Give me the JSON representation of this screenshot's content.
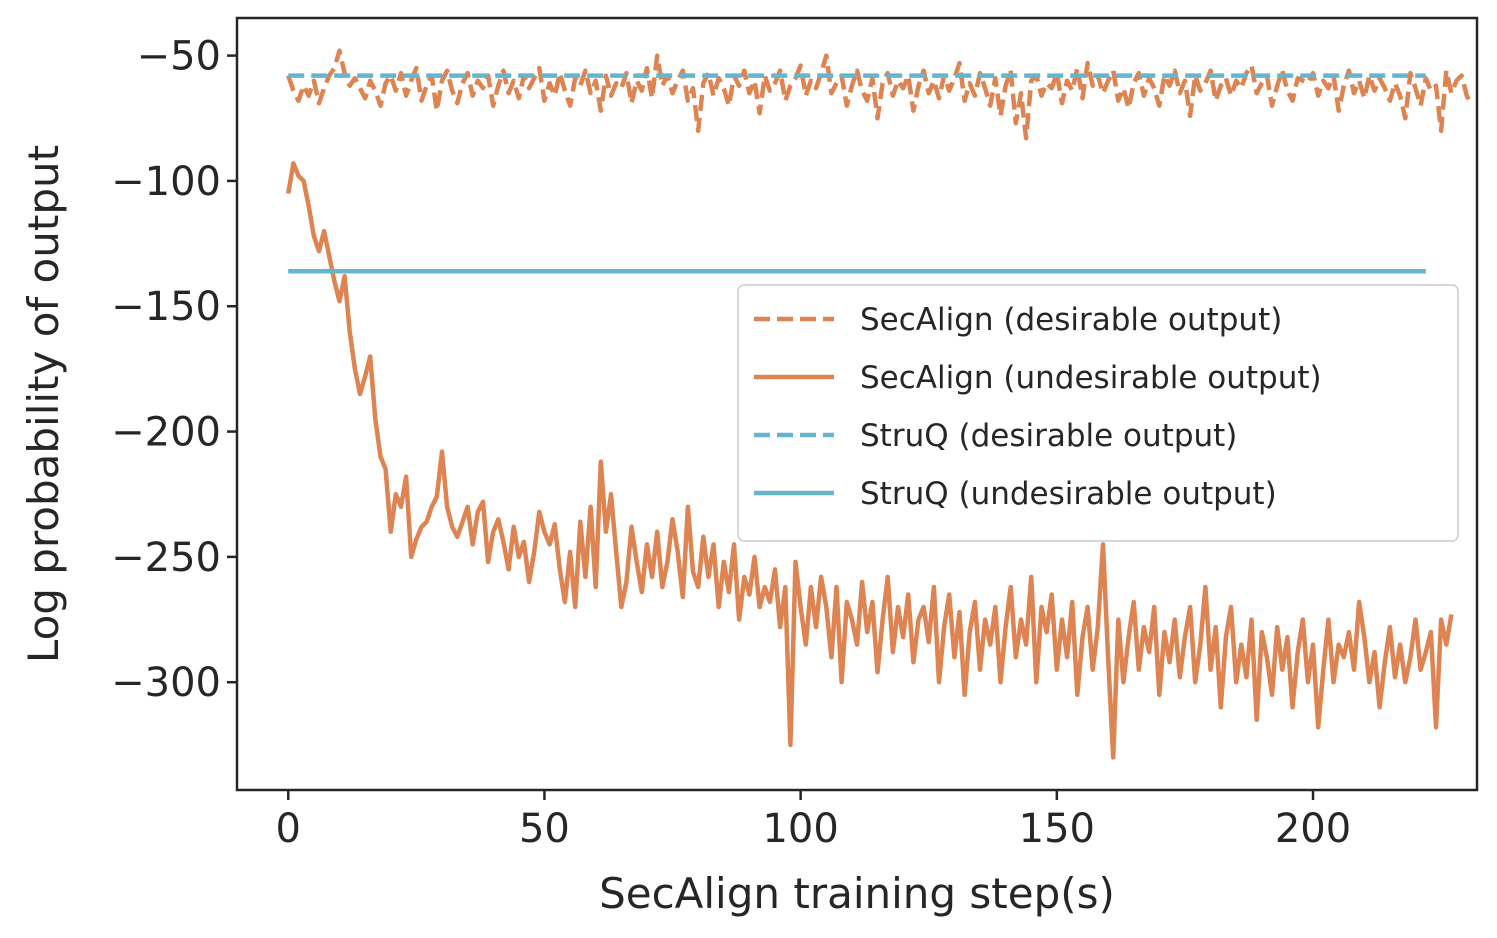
{
  "chart_data": {
    "type": "line",
    "xlabel": "SecAlign training step(s)",
    "ylabel": "Log probability of output",
    "xlim": [
      -10,
      232
    ],
    "ylim": [
      -343,
      -35
    ],
    "xticks": [
      0,
      50,
      100,
      150,
      200
    ],
    "yticks": [
      -50,
      -100,
      -150,
      -200,
      -250,
      -300
    ],
    "xtick_labels": [
      "0",
      "50",
      "100",
      "150",
      "200"
    ],
    "ytick_labels": [
      "−50",
      "−100",
      "−150",
      "−200",
      "−250",
      "−300"
    ],
    "grid": false,
    "legend_position": "center-right",
    "series": [
      {
        "name": "SecAlign (desirable output)",
        "color": "#DD8452",
        "style": "dashed",
        "step": 1,
        "x_start": 0,
        "values": [
          -58,
          -64,
          -68,
          -62,
          -66,
          -60,
          -69,
          -63,
          -58,
          -55,
          -48,
          -57,
          -62,
          -59,
          -63,
          -67,
          -60,
          -64,
          -70,
          -61,
          -58,
          -64,
          -57,
          -66,
          -60,
          -55,
          -68,
          -62,
          -58,
          -72,
          -60,
          -56,
          -64,
          -69,
          -61,
          -57,
          -66,
          -60,
          -63,
          -58,
          -70,
          -62,
          -56,
          -65,
          -60,
          -67,
          -58,
          -63,
          -59,
          -55,
          -68,
          -61,
          -66,
          -57,
          -64,
          -70,
          -59,
          -62,
          -56,
          -65,
          -60,
          -72,
          -58,
          -66,
          -61,
          -63,
          -57,
          -69,
          -60,
          -64,
          -55,
          -67,
          -50,
          -62,
          -58,
          -65,
          -60,
          -56,
          -68,
          -63,
          -80,
          -61,
          -57,
          -66,
          -59,
          -63,
          -70,
          -58,
          -62,
          -56,
          -65,
          -60,
          -73,
          -58,
          -64,
          -61,
          -56,
          -68,
          -62,
          -59,
          -54,
          -66,
          -60,
          -63,
          -57,
          -50,
          -65,
          -61,
          -58,
          -70,
          -62,
          -56,
          -64,
          -68,
          -59,
          -75,
          -61,
          -57,
          -66,
          -60,
          -63,
          -58,
          -72,
          -62,
          -56,
          -65,
          -60,
          -67,
          -58,
          -64,
          -59,
          -53,
          -68,
          -61,
          -66,
          -57,
          -63,
          -70,
          -59,
          -74,
          -62,
          -56,
          -77,
          -65,
          -83,
          -60,
          -58,
          -66,
          -61,
          -63,
          -57,
          -69,
          -60,
          -64,
          -55,
          -67,
          -53,
          -62,
          -58,
          -65,
          -60,
          -56,
          -68,
          -63,
          -71,
          -61,
          -57,
          -66,
          -59,
          -63,
          -70,
          -58,
          -62,
          -56,
          -65,
          -60,
          -74,
          -58,
          -64,
          -61,
          -56,
          -68,
          -62,
          -59,
          -66,
          -60,
          -63,
          -57,
          -54,
          -65,
          -61,
          -58,
          -70,
          -62,
          -56,
          -64,
          -68,
          -59,
          -60,
          -61,
          -57,
          -66,
          -60,
          -63,
          -58,
          -72,
          -62,
          -56,
          -65,
          -60,
          -67,
          -58,
          -64,
          -59,
          -63,
          -68,
          -61,
          -66,
          -75,
          -57,
          -63,
          -70,
          -59,
          -64,
          -62,
          -80,
          -56,
          -65,
          -60,
          -58,
          -66,
          -70
        ]
      },
      {
        "name": "SecAlign (undesirable output)",
        "color": "#DD8452",
        "style": "solid",
        "step": 1,
        "x_start": 0,
        "values": [
          -105,
          -93,
          -98,
          -100,
          -110,
          -122,
          -128,
          -120,
          -130,
          -140,
          -148,
          -138,
          -160,
          -175,
          -185,
          -178,
          -170,
          -195,
          -210,
          -215,
          -240,
          -225,
          -230,
          -218,
          -250,
          -243,
          -238,
          -236,
          -230,
          -226,
          -208,
          -230,
          -238,
          -242,
          -236,
          -230,
          -245,
          -232,
          -228,
          -252,
          -240,
          -235,
          -244,
          -255,
          -238,
          -250,
          -244,
          -260,
          -248,
          -232,
          -240,
          -245,
          -237,
          -255,
          -268,
          -248,
          -270,
          -236,
          -258,
          -230,
          -262,
          -212,
          -240,
          -225,
          -248,
          -270,
          -260,
          -238,
          -252,
          -264,
          -245,
          -258,
          -240,
          -262,
          -252,
          -235,
          -248,
          -266,
          -230,
          -256,
          -262,
          -242,
          -258,
          -245,
          -270,
          -252,
          -264,
          -245,
          -275,
          -258,
          -265,
          -250,
          -270,
          -262,
          -268,
          -255,
          -278,
          -262,
          -325,
          -252,
          -270,
          -285,
          -262,
          -278,
          -258,
          -270,
          -290,
          -262,
          -300,
          -268,
          -275,
          -285,
          -260,
          -280,
          -268,
          -296,
          -275,
          -258,
          -288,
          -270,
          -282,
          -265,
          -292,
          -275,
          -270,
          -284,
          -262,
          -300,
          -278,
          -265,
          -290,
          -272,
          -305,
          -280,
          -268,
          -295,
          -275,
          -285,
          -270,
          -300,
          -278,
          -262,
          -290,
          -275,
          -285,
          -258,
          -300,
          -270,
          -280,
          -265,
          -295,
          -275,
          -290,
          -268,
          -305,
          -282,
          -270,
          -295,
          -278,
          -245,
          -290,
          -330,
          -275,
          -300,
          -282,
          -268,
          -295,
          -278,
          -288,
          -270,
          -305,
          -280,
          -292,
          -275,
          -298,
          -282,
          -270,
          -300,
          -285,
          -262,
          -295,
          -278,
          -310,
          -282,
          -270,
          -300,
          -285,
          -298,
          -275,
          -315,
          -280,
          -290,
          -305,
          -278,
          -295,
          -282,
          -310,
          -288,
          -275,
          -300,
          -285,
          -318,
          -295,
          -275,
          -300,
          -285,
          -290,
          -280,
          -295,
          -268,
          -282,
          -300,
          -288,
          -310,
          -292,
          -278,
          -298,
          -285,
          -300,
          -290,
          -275,
          -295,
          -288,
          -280,
          -318,
          -275,
          -285,
          -273
        ]
      },
      {
        "name": "StruQ (desirable output)",
        "color": "#64B5CD",
        "style": "dashed",
        "x": [
          0,
          222
        ],
        "values": [
          -58,
          -58
        ]
      },
      {
        "name": "StruQ (undesirable output)",
        "color": "#64B5CD",
        "style": "solid",
        "x": [
          0,
          222
        ],
        "values": [
          -136,
          -136
        ]
      }
    ]
  }
}
